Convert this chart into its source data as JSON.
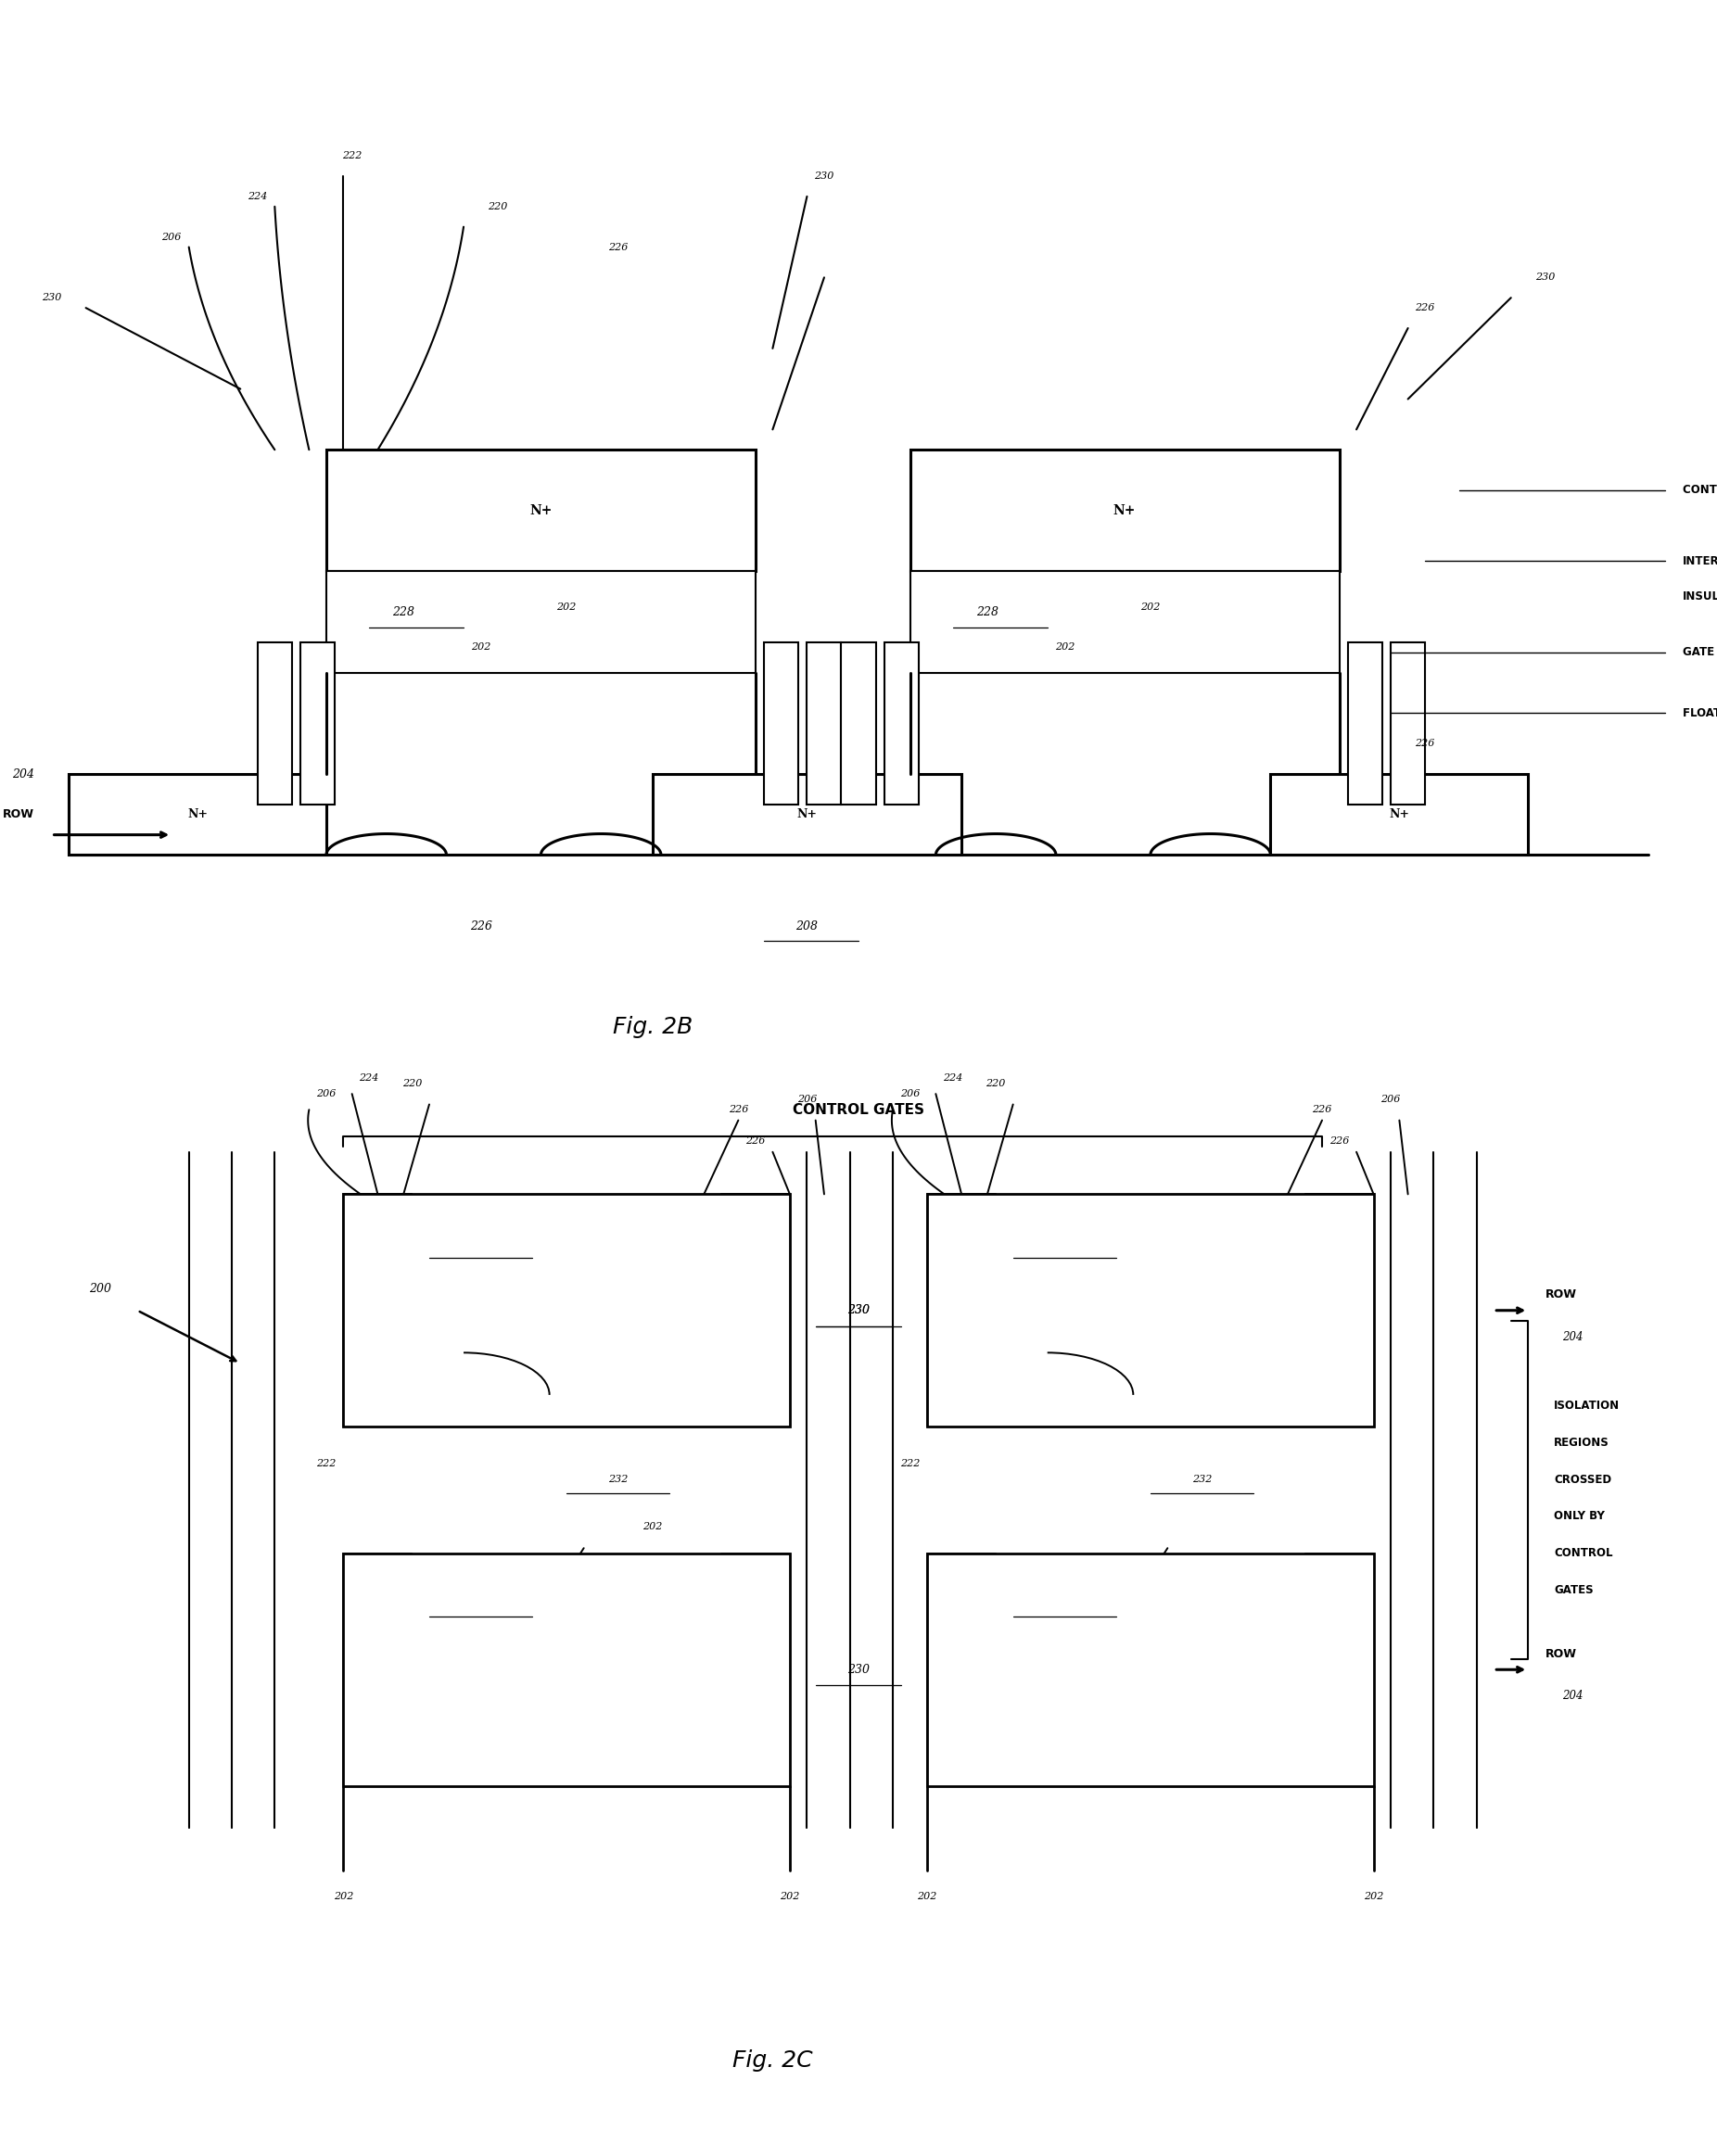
{
  "fig_width": 18.52,
  "fig_height": 23.26,
  "bg_color": "#ffffff",
  "fig2b_caption": "Fig. 2B",
  "fig2c_caption": "Fig. 2C",
  "fig2c_header": "CONTROL GATES"
}
